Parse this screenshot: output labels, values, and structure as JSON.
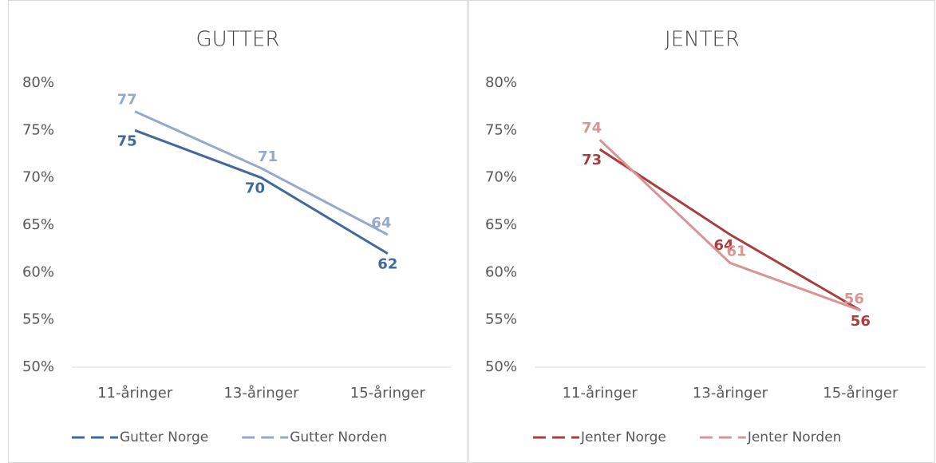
{
  "chart_data": [
    {
      "type": "line",
      "title": "GUTTER",
      "categories": [
        "11-åringer",
        "13-åringer",
        "15-åringer"
      ],
      "series": [
        {
          "name": "Gutter Norge",
          "color": "#41699e",
          "values": [
            75,
            70,
            62
          ]
        },
        {
          "name": "Gutter Norden",
          "color": "#94a9cc",
          "values": [
            77,
            71,
            64
          ]
        }
      ],
      "ylim": [
        50,
        80
      ],
      "yticks": [
        {
          "value": 50,
          "label": "50%"
        },
        {
          "value": 55,
          "label": "55%"
        },
        {
          "value": 60,
          "label": "60%"
        },
        {
          "value": 65,
          "label": "65%"
        },
        {
          "value": 70,
          "label": "70%"
        },
        {
          "value": 75,
          "label": "75%"
        },
        {
          "value": 80,
          "label": "80%"
        }
      ],
      "legend": "bottom"
    },
    {
      "type": "line",
      "title": "JENTER",
      "categories": [
        "11-åringer",
        "13-åringer",
        "15-åringer"
      ],
      "series": [
        {
          "name": "Jenter Norge",
          "color": "#a83e3e",
          "values": [
            73,
            64,
            56
          ]
        },
        {
          "name": "Jenter Norden",
          "color": "#d99594",
          "values": [
            74,
            61,
            56
          ]
        }
      ],
      "ylim": [
        50,
        80
      ],
      "yticks": [
        {
          "value": 50,
          "label": "50%"
        },
        {
          "value": 55,
          "label": "55%"
        },
        {
          "value": 60,
          "label": "60%"
        },
        {
          "value": 65,
          "label": "65%"
        },
        {
          "value": 70,
          "label": "70%"
        },
        {
          "value": 75,
          "label": "75%"
        },
        {
          "value": 80,
          "label": "80%"
        }
      ],
      "legend": "bottom"
    }
  ]
}
